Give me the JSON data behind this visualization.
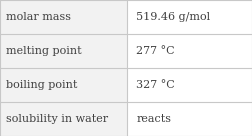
{
  "rows": [
    [
      "molar mass",
      "519.46 g/mol"
    ],
    [
      "melting point",
      "277 °C"
    ],
    [
      "boiling point",
      "327 °C"
    ],
    [
      "solubility in water",
      "reacts"
    ]
  ],
  "bg_color": "#ffffff",
  "line_color": "#c8c8c8",
  "left_col_color": "#f2f2f2",
  "right_col_color": "#ffffff",
  "text_color": "#404040",
  "font_size": 8.0,
  "col_split": 0.505,
  "fig_width": 2.52,
  "fig_height": 1.36,
  "dpi": 100
}
